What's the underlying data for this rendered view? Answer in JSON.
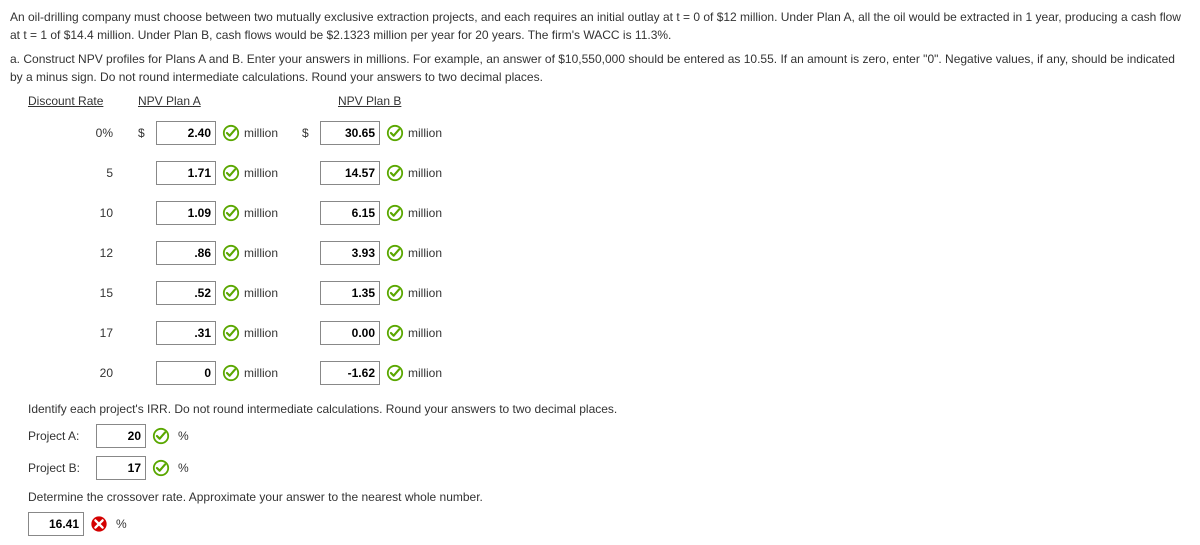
{
  "intro": {
    "line1": "An oil-drilling company must choose between two mutually exclusive extraction projects, and each requires an initial outlay at t = 0 of $12 million. Under Plan A, all the oil would be extracted in 1 year, producing a cash flow at t = 1 of $14.4 million. Under Plan B, cash flows would be $2.1323 million per year for 20 years. The firm's WACC is 11.3%."
  },
  "partA": {
    "prefix": "a.",
    "text": "Construct NPV profiles for Plans A and B. Enter your answers in millions. For example, an answer of $10,550,000 should be entered as 10.55. If an amount is zero, enter \"0\". Negative values, if any, should be indicated by a minus sign. Do not round intermediate calculations. Round your answers to two decimal places."
  },
  "headers": {
    "rate": "Discount Rate",
    "planA": "NPV Plan A",
    "planB": "NPV Plan B"
  },
  "unit": "million",
  "dollar": "$",
  "pct": "%",
  "rows": [
    {
      "rate": "0%",
      "a": "2.40",
      "b": "30.65",
      "showDollar": true
    },
    {
      "rate": "5",
      "a": "1.71",
      "b": "14.57",
      "showDollar": false
    },
    {
      "rate": "10",
      "a": "1.09",
      "b": "6.15",
      "showDollar": false
    },
    {
      "rate": "12",
      "a": ".86",
      "b": "3.93",
      "showDollar": false
    },
    {
      "rate": "15",
      "a": ".52",
      "b": "1.35",
      "showDollar": false
    },
    {
      "rate": "17",
      "a": ".31",
      "b": "0.00",
      "showDollar": false
    },
    {
      "rate": "20",
      "a": "0",
      "b": "-1.62",
      "showDollar": false
    }
  ],
  "irr": {
    "instr": "Identify each project's IRR. Do not round intermediate calculations. Round your answers to two decimal places.",
    "projA_label": "Project A:",
    "projA_val": "20",
    "projB_label": "Project B:",
    "projB_val": "17"
  },
  "crossover": {
    "instr": "Determine the crossover rate. Approximate your answer to the nearest whole number.",
    "val": "16.41",
    "correct": false
  },
  "icons": {
    "correct_fill": "#ffffff",
    "correct_stroke": "#5aa700",
    "wrong_fill": "#d40000"
  }
}
